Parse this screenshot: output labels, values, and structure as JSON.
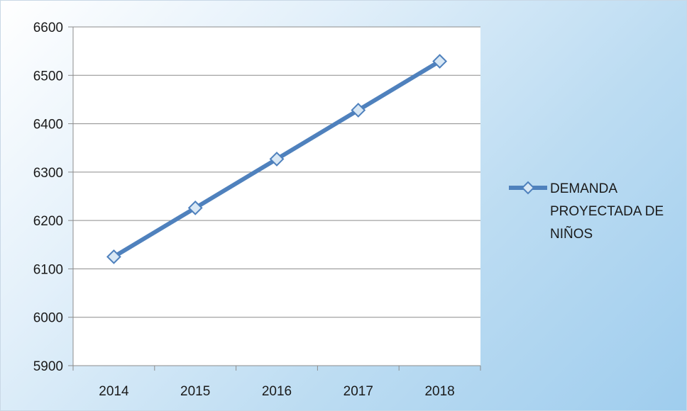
{
  "chart_data": {
    "type": "line",
    "title": "",
    "xlabel": "",
    "ylabel": "",
    "categories": [
      "2014",
      "2015",
      "2016",
      "2017",
      "2018"
    ],
    "ylim": [
      5900,
      6600
    ],
    "y_ticks": [
      5900,
      6000,
      6100,
      6200,
      6300,
      6400,
      6500,
      6600
    ],
    "series": [
      {
        "name": "DEMANDA PROYECTADA DE NIÑOS",
        "values": [
          6125,
          6226,
          6327,
          6428,
          6529
        ],
        "color": "#4f81bd",
        "marker": "diamond",
        "marker_fill": "#d9e8f5"
      }
    ],
    "grid": true,
    "legend_position": "right",
    "legend_lines": [
      "DEMANDA",
      "PROYECTADA DE",
      "NIÑOS"
    ]
  }
}
